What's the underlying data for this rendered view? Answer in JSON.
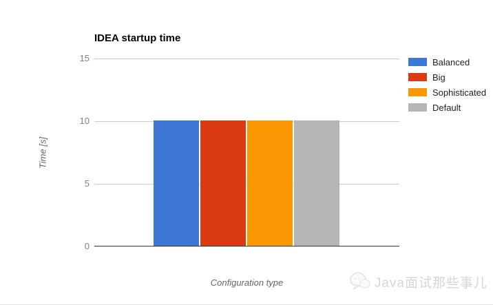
{
  "chart_data": {
    "type": "bar",
    "title": "IDEA startup time",
    "xlabel": "Configuration type",
    "ylabel": "Time [s]",
    "ylim": [
      0,
      15
    ],
    "yticks": [
      0,
      5,
      10,
      15
    ],
    "ytick_labels": [
      "15",
      "10",
      "5",
      "0"
    ],
    "grid": true,
    "legend_position": "right",
    "categories": [
      "Configuration type"
    ],
    "series": [
      {
        "name": "Balanced",
        "value": 10,
        "color": "#3f77d6"
      },
      {
        "name": "Big",
        "value": 10,
        "color": "#dc3a12"
      },
      {
        "name": "Sophisticated",
        "value": 10,
        "color": "#fc9803"
      },
      {
        "name": "Default",
        "value": 10,
        "color": "#b5b5b5"
      }
    ]
  },
  "watermark": {
    "text": "Java面试那些事儿",
    "icon": "chat-bubbles-logo-icon"
  }
}
